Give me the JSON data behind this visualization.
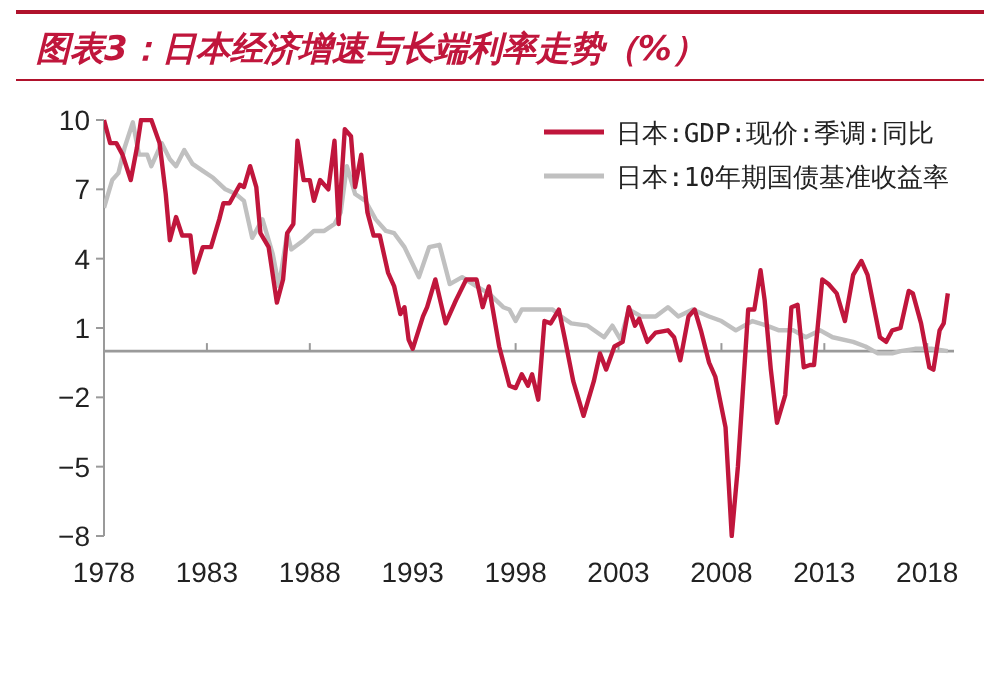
{
  "chart_data": {
    "type": "line",
    "title": "图表3：日本经济增速与长端利率走势（%）",
    "xlim": [
      1978,
      2019.3
    ],
    "xticks": [
      1978,
      1983,
      1988,
      1993,
      1998,
      2003,
      2008,
      2013,
      2018
    ],
    "ylim": [
      -8,
      10
    ],
    "yticks": [
      {
        "value": 10,
        "label": "10"
      },
      {
        "value": 7,
        "label": "7"
      },
      {
        "value": 4,
        "label": "4"
      },
      {
        "value": 1,
        "label": "1"
      },
      {
        "value": -2,
        "label": "−2"
      },
      {
        "value": -5,
        "label": "−5"
      },
      {
        "value": -8,
        "label": "−8"
      }
    ],
    "ref_lines": [
      {
        "axis": "y",
        "value": 0,
        "color": "#9a9a9a"
      }
    ],
    "grid": false,
    "legend": "top right",
    "series": [
      {
        "name": "日本:10年期国债基准收益率",
        "color": "#c0c0c0",
        "x": [
          1978.0,
          1978.4,
          1978.7,
          1979.0,
          1979.4,
          1979.7,
          1980.1,
          1980.3,
          1980.8,
          1981.2,
          1981.5,
          1981.9,
          1982.3,
          1982.8,
          1983.3,
          1983.9,
          1984.4,
          1984.8,
          1985.2,
          1985.7,
          1986.2,
          1986.5,
          1986.9,
          1987.1,
          1987.7,
          1988.2,
          1988.7,
          1989.2,
          1989.5,
          1989.8,
          1990.2,
          1990.7,
          1991.2,
          1991.7,
          1992.1,
          1992.6,
          1993.3,
          1993.8,
          1994.3,
          1994.8,
          1995.4,
          1996.1,
          1996.7,
          1997.4,
          1997.7,
          1998.0,
          1998.3,
          1998.8,
          1999.3,
          1999.8,
          2000.2,
          2000.7,
          2001.5,
          2002.3,
          2002.7,
          2003.1,
          2003.5,
          2004.1,
          2004.8,
          2005.4,
          2005.9,
          2006.6,
          2007.4,
          2008.0,
          2008.7,
          2009.5,
          2010.2,
          2010.8,
          2011.5,
          2012.1,
          2012.8,
          2013.4,
          2014.4,
          2015.0,
          2015.6,
          2016.3,
          2016.7,
          2017.4,
          2018.2,
          2019.0
        ],
        "values": [
          6.2,
          7.4,
          7.7,
          8.8,
          9.9,
          8.5,
          8.5,
          8.0,
          9.0,
          8.3,
          8.0,
          8.7,
          8.1,
          7.8,
          7.5,
          7.0,
          6.8,
          6.5,
          4.9,
          5.7,
          4.2,
          2.8,
          5.1,
          4.4,
          4.8,
          5.2,
          5.2,
          5.5,
          6.0,
          8.0,
          6.8,
          6.5,
          5.7,
          5.2,
          5.1,
          4.5,
          3.2,
          4.5,
          4.6,
          2.9,
          3.2,
          2.8,
          2.5,
          1.9,
          1.8,
          1.3,
          1.8,
          1.8,
          1.8,
          1.8,
          1.5,
          1.2,
          1.1,
          0.6,
          1.1,
          0.5,
          1.8,
          1.5,
          1.5,
          1.9,
          1.5,
          1.8,
          1.5,
          1.3,
          0.9,
          1.3,
          1.1,
          0.9,
          0.9,
          0.6,
          0.9,
          0.6,
          0.4,
          0.2,
          -0.1,
          -0.1,
          0.0,
          0.1,
          0.1,
          0.0
        ]
      },
      {
        "name": "日本:GDP:现价:季调:同比",
        "color": "#c0163c",
        "x": [
          1978.0,
          1978.3,
          1978.6,
          1978.9,
          1979.3,
          1979.6,
          1979.8,
          1980.3,
          1980.7,
          1981.0,
          1981.2,
          1981.5,
          1981.8,
          1982.2,
          1982.4,
          1982.8,
          1983.2,
          1983.6,
          1983.8,
          1984.1,
          1984.6,
          1984.8,
          1985.1,
          1985.4,
          1985.6,
          1986.0,
          1986.4,
          1986.7,
          1986.9,
          1987.2,
          1987.4,
          1987.7,
          1988.0,
          1988.2,
          1988.5,
          1988.9,
          1989.2,
          1989.4,
          1989.7,
          1990.0,
          1990.2,
          1990.5,
          1990.8,
          1991.1,
          1991.4,
          1991.8,
          1992.1,
          1992.4,
          1992.6,
          1992.8,
          1993.0,
          1993.5,
          1993.7,
          1994.1,
          1994.6,
          1995.1,
          1995.6,
          1996.1,
          1996.4,
          1996.7,
          1997.2,
          1997.7,
          1998.0,
          1998.3,
          1998.6,
          1998.8,
          1999.1,
          1999.4,
          1999.7,
          2000.1,
          2000.4,
          2000.8,
          2001.3,
          2001.8,
          2002.1,
          2002.4,
          2002.8,
          2003.2,
          2003.5,
          2003.8,
          2004.0,
          2004.4,
          2004.8,
          2005.4,
          2005.7,
          2006.0,
          2006.4,
          2006.7,
          2007.0,
          2007.4,
          2007.7,
          2008.2,
          2008.5,
          2008.8,
          2009.3,
          2009.6,
          2009.9,
          2010.1,
          2010.4,
          2010.7,
          2011.1,
          2011.4,
          2011.7,
          2012.0,
          2012.3,
          2012.5,
          2012.9,
          2013.2,
          2013.6,
          2014.0,
          2014.4,
          2014.8,
          2015.1,
          2015.7,
          2016.0,
          2016.3,
          2016.7,
          2017.1,
          2017.3,
          2017.7,
          2018.1,
          2018.3,
          2018.6,
          2018.8,
          2019.0
        ],
        "values": [
          10.0,
          9.0,
          9.0,
          8.5,
          7.4,
          8.8,
          10.0,
          10.0,
          9.0,
          6.8,
          4.8,
          5.8,
          5.0,
          5.0,
          3.4,
          4.5,
          4.5,
          5.7,
          6.4,
          6.4,
          7.2,
          7.1,
          8.0,
          7.1,
          5.1,
          4.5,
          2.1,
          3.1,
          5.1,
          5.5,
          9.1,
          7.4,
          7.4,
          6.5,
          7.4,
          7.0,
          9.1,
          5.5,
          9.6,
          9.3,
          7.1,
          8.5,
          6.0,
          5.0,
          5.0,
          3.4,
          2.8,
          1.6,
          1.9,
          0.5,
          0.1,
          1.5,
          1.9,
          3.1,
          1.2,
          2.2,
          3.1,
          3.1,
          1.9,
          2.8,
          0.2,
          -1.5,
          -1.6,
          -1.0,
          -1.5,
          -1.0,
          -2.1,
          1.3,
          1.2,
          1.8,
          0.5,
          -1.3,
          -2.8,
          -1.3,
          -0.1,
          -0.8,
          0.2,
          0.4,
          1.9,
          1.1,
          1.4,
          0.4,
          0.8,
          0.9,
          0.6,
          -0.4,
          1.5,
          1.8,
          0.9,
          -0.5,
          -1.1,
          -3.3,
          -8.0,
          -5.0,
          1.8,
          1.8,
          3.5,
          2.2,
          -0.8,
          -3.1,
          -1.9,
          1.9,
          2.0,
          -0.7,
          -0.6,
          -0.6,
          3.1,
          2.9,
          2.5,
          1.3,
          3.3,
          3.9,
          3.3,
          0.6,
          0.4,
          0.9,
          1.0,
          2.6,
          2.5,
          1.2,
          -0.7,
          -0.8,
          0.9,
          1.2,
          2.5
        ]
      }
    ]
  }
}
